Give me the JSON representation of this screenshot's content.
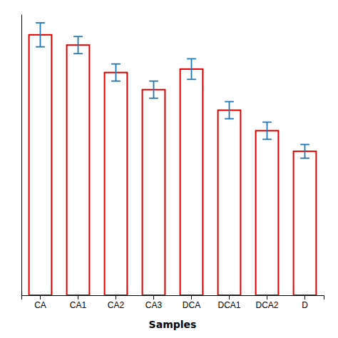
{
  "chart_data": {
    "type": "bar",
    "x_label": "Samples",
    "categories": [
      "CA",
      "CA1",
      "CA2",
      "CA3",
      "DCA",
      "DCA1",
      "DCA2",
      "D"
    ],
    "values": [
      76,
      73,
      65,
      60,
      66,
      54,
      48,
      42
    ],
    "errors": [
      3.5,
      2.5,
      2.5,
      2.5,
      3.0,
      2.5,
      2.5,
      2.0
    ],
    "color": "#dd0000",
    "ylim": [
      0,
      82
    ],
    "tick_labels": "x"
  }
}
